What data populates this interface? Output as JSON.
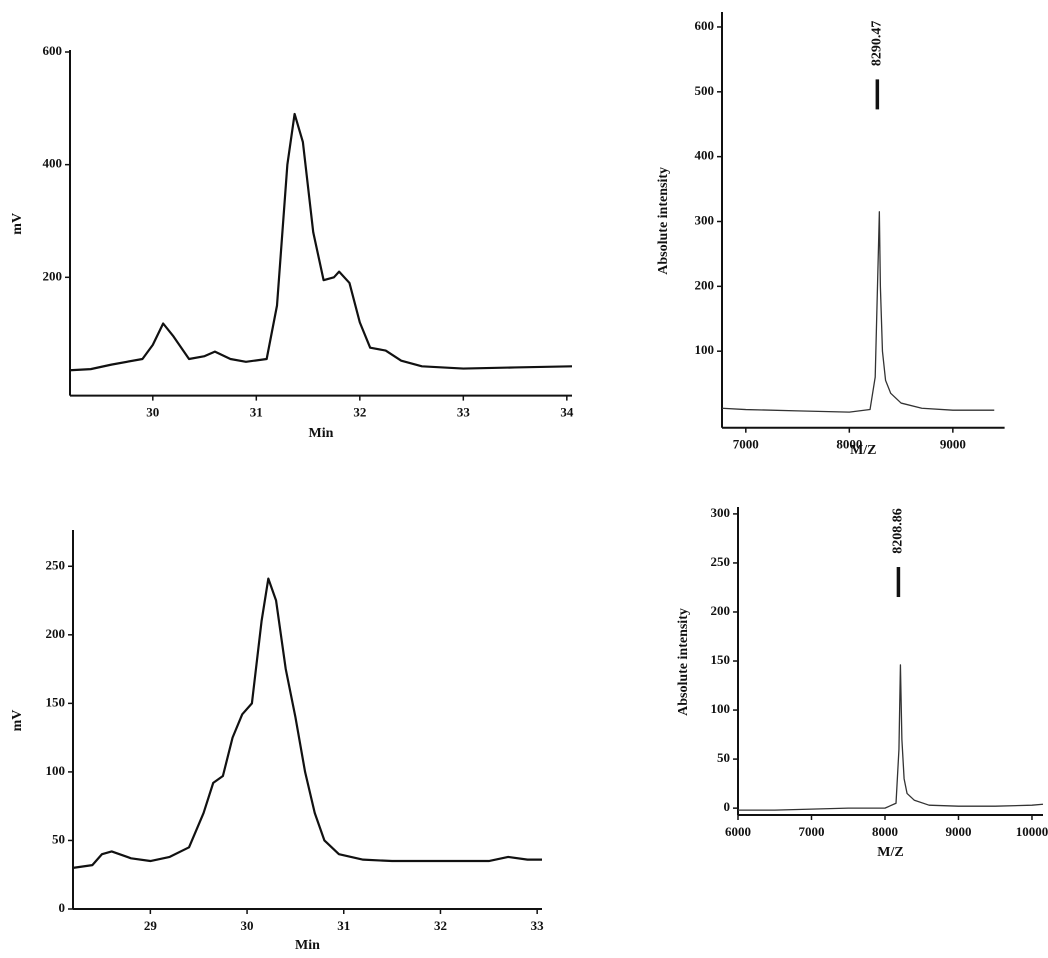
{
  "chart_data": [
    {
      "type": "line",
      "xlabel": "Min",
      "ylabel": "mV",
      "xlim": [
        29.2,
        34.05
      ],
      "xticks": [
        30,
        31,
        32,
        33,
        34
      ],
      "ylim": [
        -10,
        600
      ],
      "yticks": [
        200,
        400,
        600
      ],
      "x": [
        29.2,
        29.4,
        29.6,
        29.9,
        30.0,
        30.1,
        30.2,
        30.35,
        30.5,
        30.6,
        30.75,
        30.9,
        31.1,
        31.2,
        31.3,
        31.37,
        31.45,
        31.55,
        31.65,
        31.75,
        31.8,
        31.9,
        32.0,
        32.1,
        32.25,
        32.4,
        32.6,
        33.0,
        33.5,
        34.05
      ],
      "series": [
        {
          "color": "#111111",
          "values": [
            35,
            37,
            45,
            55,
            80,
            118,
            95,
            55,
            60,
            68,
            55,
            50,
            55,
            150,
            400,
            490,
            440,
            280,
            195,
            200,
            210,
            190,
            120,
            75,
            70,
            52,
            42,
            38,
            40,
            42
          ]
        }
      ]
    },
    {
      "type": "line",
      "xlabel": "M/Z",
      "ylabel": "Absolute intensity",
      "xlim": [
        6770,
        9500
      ],
      "xticks": [
        7000,
        8000,
        9000
      ],
      "ylim": [
        -18,
        620
      ],
      "yticks": [
        100,
        200,
        300,
        400,
        500,
        600
      ],
      "annotations": [
        "8290.47"
      ],
      "x": [
        6770,
        7000,
        7500,
        8000,
        8200,
        8250,
        8280,
        8290,
        8300,
        8320,
        8350,
        8400,
        8500,
        8700,
        9000,
        9400
      ],
      "series": [
        {
          "color": "#333333",
          "values": [
            12,
            10,
            8,
            6,
            10,
            60,
            250,
            315,
            200,
            100,
            55,
            35,
            20,
            12,
            9,
            9
          ]
        }
      ]
    },
    {
      "type": "line",
      "xlabel": "Min",
      "ylabel": "mV",
      "xlim": [
        28.2,
        33.05
      ],
      "xticks": [
        29,
        30,
        31,
        32,
        33
      ],
      "ylim": [
        0,
        275
      ],
      "yticks": [
        0,
        50,
        100,
        150,
        200,
        250
      ],
      "x": [
        28.2,
        28.4,
        28.5,
        28.6,
        28.8,
        29.0,
        29.2,
        29.4,
        29.55,
        29.65,
        29.75,
        29.85,
        29.95,
        30.05,
        30.15,
        30.22,
        30.3,
        30.4,
        30.5,
        30.6,
        30.7,
        30.8,
        30.95,
        31.2,
        31.5,
        32.0,
        32.5,
        32.7,
        32.9,
        33.05
      ],
      "series": [
        {
          "color": "#111111",
          "values": [
            30,
            32,
            40,
            42,
            37,
            35,
            38,
            45,
            70,
            92,
            97,
            125,
            142,
            150,
            210,
            241,
            225,
            175,
            140,
            100,
            70,
            50,
            40,
            36,
            35,
            35,
            35,
            38,
            36,
            36
          ]
        }
      ]
    },
    {
      "type": "line",
      "xlabel": "M/Z",
      "ylabel": "Absolute intensity",
      "xlim": [
        6000,
        10150
      ],
      "xticks": [
        6000,
        7000,
        8000,
        9000,
        10000
      ],
      "ylim": [
        -7,
        305
      ],
      "yticks": [
        0,
        50,
        100,
        150,
        200,
        250,
        300
      ],
      "annotations": [
        "8208.86"
      ],
      "x": [
        6000,
        6500,
        7000,
        7500,
        8000,
        8150,
        8190,
        8210,
        8230,
        8260,
        8300,
        8400,
        8600,
        9000,
        9500,
        10000,
        10150
      ],
      "series": [
        {
          "color": "#333333",
          "values": [
            -2,
            -2,
            -1,
            0,
            0,
            5,
            60,
            146,
            70,
            30,
            15,
            8,
            3,
            2,
            2,
            3,
            4
          ]
        }
      ]
    }
  ]
}
